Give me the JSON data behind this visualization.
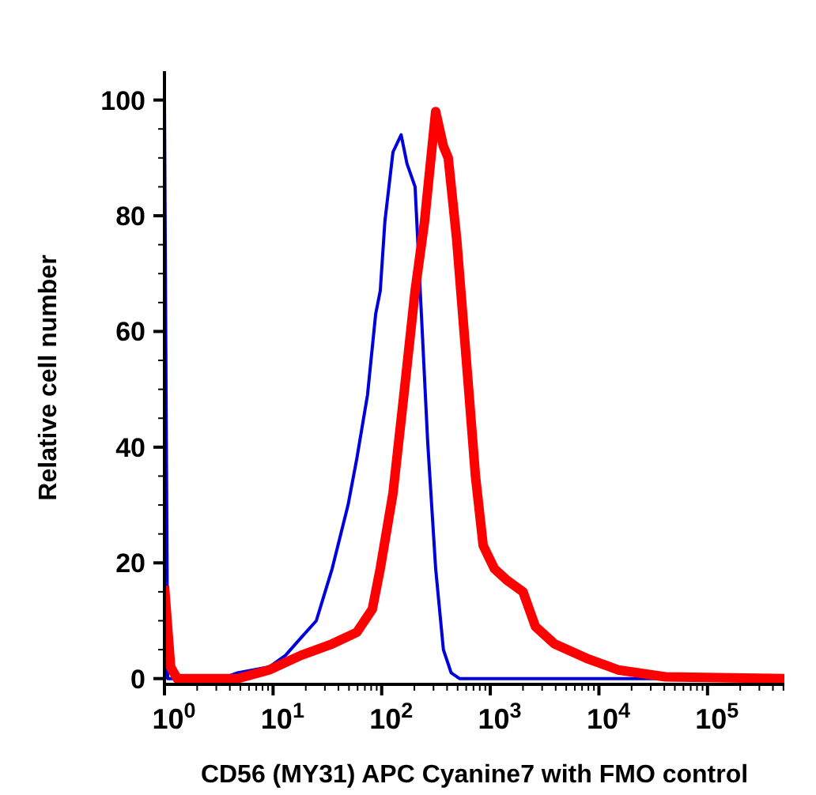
{
  "chart_data": {
    "type": "line",
    "xlabel": "CD56 (MY31) APC Cyanine7 with FMO control",
    "ylabel": "Relative cell number",
    "log": "x",
    "marker": "none",
    "line_style": "solid",
    "xlim": [
      1,
      510000
    ],
    "ylim": [
      -1,
      105
    ],
    "xticks": [
      {
        "value": 1,
        "label": "10$^{0}$"
      },
      {
        "value": 2,
        "label": null
      },
      {
        "value": 3,
        "label": null
      },
      {
        "value": 4,
        "label": null
      },
      {
        "value": 5,
        "label": null
      },
      {
        "value": 6,
        "label": null
      },
      {
        "value": 7,
        "label": null
      },
      {
        "value": 8,
        "label": null
      },
      {
        "value": 9,
        "label": null
      },
      {
        "value": 10,
        "label": "10$^{1}$"
      },
      {
        "value": 20,
        "label": null
      },
      {
        "value": 30,
        "label": null
      },
      {
        "value": 40,
        "label": null
      },
      {
        "value": 50,
        "label": null
      },
      {
        "value": 60,
        "label": null
      },
      {
        "value": 70,
        "label": null
      },
      {
        "value": 80,
        "label": null
      },
      {
        "value": 90,
        "label": null
      },
      {
        "value": 100,
        "label": "10$^{2}$"
      },
      {
        "value": 200,
        "label": null
      },
      {
        "value": 300,
        "label": null
      },
      {
        "value": 400,
        "label": null
      },
      {
        "value": 500,
        "label": null
      },
      {
        "value": 600,
        "label": null
      },
      {
        "value": 700,
        "label": null
      },
      {
        "value": 800,
        "label": null
      },
      {
        "value": 900,
        "label": null
      },
      {
        "value": 1000,
        "label": "10$^{3}$"
      },
      {
        "value": 2000,
        "label": null
      },
      {
        "value": 3000,
        "label": null
      },
      {
        "value": 4000,
        "label": null
      },
      {
        "value": 5000,
        "label": null
      },
      {
        "value": 6000,
        "label": null
      },
      {
        "value": 7000,
        "label": null
      },
      {
        "value": 8000,
        "label": null
      },
      {
        "value": 9000,
        "label": null
      },
      {
        "value": 10000,
        "label": "10$^{4}$"
      },
      {
        "value": 20000,
        "label": null
      },
      {
        "value": 30000,
        "label": null
      },
      {
        "value": 40000,
        "label": null
      },
      {
        "value": 50000,
        "label": null
      },
      {
        "value": 60000,
        "label": null
      },
      {
        "value": 70000,
        "label": null
      },
      {
        "value": 80000,
        "label": null
      },
      {
        "value": 90000,
        "label": null
      },
      {
        "value": 100000,
        "label": "10$^{5}$"
      },
      {
        "value": 200000,
        "label": null
      },
      {
        "value": 300000,
        "label": null
      },
      {
        "value": 400000,
        "label": null
      },
      {
        "value": 500000,
        "label": null
      }
    ],
    "yticks": [
      0,
      {
        "value": 5,
        "label": null
      },
      {
        "value": 10,
        "label": null
      },
      {
        "value": 15,
        "label": null
      },
      20,
      {
        "value": 25,
        "label": null
      },
      {
        "value": 30,
        "label": null
      },
      {
        "value": 35,
        "label": null
      },
      40,
      {
        "value": 45,
        "label": null
      },
      {
        "value": 50,
        "label": null
      },
      {
        "value": 55,
        "label": null
      },
      60,
      {
        "value": 65,
        "label": null
      },
      {
        "value": 70,
        "label": null
      },
      {
        "value": 75,
        "label": null
      },
      80,
      {
        "value": 85,
        "label": null
      },
      {
        "value": 90,
        "label": null
      },
      {
        "value": 95,
        "label": null
      },
      100
    ],
    "series": [
      {
        "color": "#0000dd",
        "x": [
          1,
          1.07,
          3.4,
          4.7,
          9.2,
          13,
          18,
          25,
          35,
          49,
          59,
          74,
          88,
          97,
          107,
          127,
          151,
          171,
          203,
          232,
          265,
          314,
          370,
          436,
          520,
          510000
        ],
        "values": [
          100,
          0,
          0,
          1,
          2,
          4,
          7,
          10,
          19,
          30,
          38,
          49,
          63,
          67,
          79,
          91,
          94,
          89,
          85,
          63,
          41,
          19,
          5,
          1,
          0,
          0
        ]
      },
      {
        "color": "#ff0000",
        "x": [
          1,
          1.14,
          1.31,
          4.7,
          9.2,
          18,
          35,
          59,
          82,
          97,
          127,
          160,
          203,
          248,
          314,
          370,
          410,
          490,
          620,
          730,
          860,
          1090,
          1420,
          2000,
          2600,
          3900,
          7700,
          15000,
          41000,
          510000
        ],
        "values": [
          16,
          2,
          0,
          0,
          1.5,
          4,
          6,
          8,
          12,
          19,
          32,
          49,
          67,
          79,
          98,
          92,
          90,
          76,
          52,
          35,
          23,
          19,
          17,
          15,
          9,
          6,
          3.5,
          1.5,
          0.3,
          0
        ]
      }
    ]
  }
}
